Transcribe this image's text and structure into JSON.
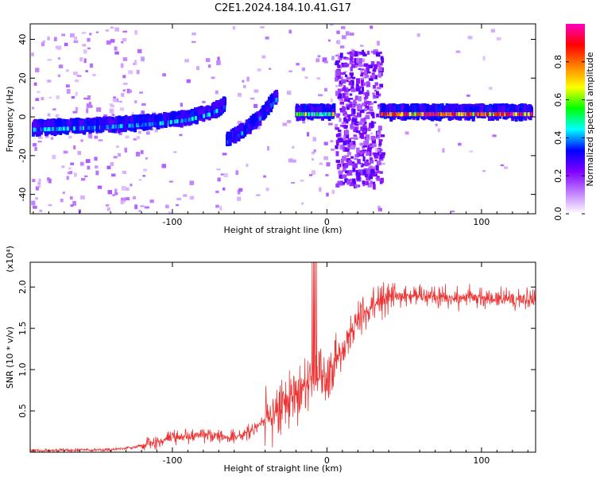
{
  "title": "C2E1.2024.184.10.41.G17",
  "chart_data": [
    {
      "type": "heatmap",
      "xlabel": "Height of straight line (km)",
      "ylabel": "Frequency (Hz)",
      "xlim": [
        -192,
        135
      ],
      "ylim": [
        -50,
        48
      ],
      "xticks": [
        -100,
        0,
        100
      ],
      "xtick_labels": [
        "-100",
        "0",
        "100"
      ],
      "yticks": [
        -40,
        -20,
        0,
        20,
        40
      ],
      "ytick_labels": [
        "-40",
        "-20",
        "0",
        "20",
        "40"
      ],
      "colorbar": {
        "label": "Normalized spectral amplitude",
        "range": [
          0,
          1
        ],
        "ticks": [
          0.0,
          0.2,
          0.4,
          0.6,
          0.8
        ],
        "tick_labels": [
          "0.0",
          "0.2",
          "0.4",
          "0.6",
          "0.8"
        ],
        "colors": [
          "#ffffff",
          "#c080ff",
          "#8000ff",
          "#0000ff",
          "#00ffff",
          "#00ff00",
          "#ffff00",
          "#ff8000",
          "#ff0000",
          "#ff00c0"
        ]
      },
      "ridges": [
        {
          "x": [
            -190,
            -150,
            -110,
            -90,
            -75,
            -66
          ],
          "y": [
            -8,
            -7,
            -5,
            -3,
            0,
            4
          ],
          "amplitude": 0.4
        },
        {
          "x": [
            -65,
            -55,
            -45,
            -38,
            -32
          ],
          "y": [
            -15,
            -10,
            -4,
            3,
            8
          ],
          "amplitude": 0.35
        },
        {
          "x": [
            -20,
            5
          ],
          "y": [
            0,
            0
          ],
          "amplitude": 0.6
        },
        {
          "x": [
            35,
            133
          ],
          "y": [
            0,
            0
          ],
          "amplitude": 0.85
        }
      ]
    },
    {
      "type": "line",
      "xlabel": "Height of straight line (km)",
      "ylabel": "SNR (10 * v/v)",
      "y_multiplier": "(x10⁴)",
      "xlim": [
        -192,
        135
      ],
      "ylim": [
        0,
        2.3
      ],
      "xticks": [
        -100,
        0,
        100
      ],
      "xtick_labels": [
        "-100",
        "0",
        "100"
      ],
      "yticks": [
        0.5,
        1.0,
        1.5,
        2.0
      ],
      "ytick_labels": [
        "0.5",
        "1.0",
        "1.5",
        "2.0"
      ],
      "color": "#ee3333",
      "trend": {
        "x": [
          -192,
          -140,
          -125,
          -110,
          -90,
          -75,
          -60,
          -50,
          -40,
          -30,
          -20,
          -10,
          0,
          10,
          20,
          30,
          40,
          60,
          80,
          100,
          120,
          135
        ],
        "y": [
          0.02,
          0.03,
          0.06,
          0.13,
          0.2,
          0.22,
          0.17,
          0.25,
          0.38,
          0.55,
          0.72,
          0.85,
          0.95,
          1.25,
          1.6,
          1.78,
          1.88,
          1.9,
          1.87,
          1.86,
          1.85,
          1.84
        ]
      }
    }
  ]
}
